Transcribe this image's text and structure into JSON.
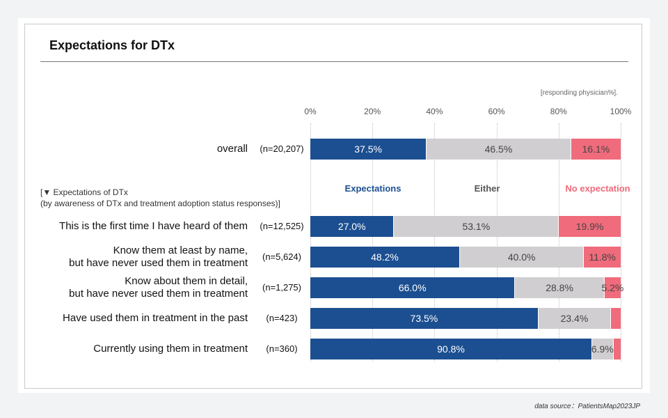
{
  "title": "Expectations for DTx",
  "unit_note": "[responding physician%].",
  "group_caption": {
    "line1": "[▼ Expectations of DTx",
    "line2": "(by awareness of DTx and treatment adoption status responses)]"
  },
  "source": "data source：PatientsMap2023JP",
  "colors": {
    "expectations": "#1c4f91",
    "either": "#d0ced0",
    "no_expectation": "#f06b7b"
  },
  "chart_data": {
    "type": "bar",
    "orientation": "horizontal-stacked",
    "title": "Expectations for DTx",
    "xlim": [
      0,
      100
    ],
    "ticks": [
      "0%",
      "20%",
      "40%",
      "60%",
      "80%",
      "100%"
    ],
    "legend_placement": "above bars",
    "series": [
      {
        "name": "Expectations",
        "key": "expectations"
      },
      {
        "name": "Either",
        "key": "either"
      },
      {
        "name": "No expectation",
        "key": "no_expectation"
      }
    ],
    "rows": [
      {
        "label": [
          "overall"
        ],
        "n": "(n=20,207)",
        "values": [
          37.5,
          46.5,
          16.1
        ],
        "labels": [
          "37.5%",
          "46.5%",
          "16.1%"
        ]
      },
      {
        "label": [
          "This is the first time I have heard of them"
        ],
        "n": "(n=12,525)",
        "values": [
          27.0,
          53.1,
          19.9
        ],
        "labels": [
          "27.0%",
          "53.1%",
          "19.9%"
        ]
      },
      {
        "label": [
          "Know them at least by name,",
          "but have never used them in treatment"
        ],
        "n": "(n=5,624)",
        "values": [
          48.2,
          40.0,
          11.8
        ],
        "labels": [
          "48.2%",
          "40.0%",
          "11.8%"
        ]
      },
      {
        "label": [
          "Know about them in detail,",
          "but have never used them in treatment"
        ],
        "n": "(n=1,275)",
        "values": [
          66.0,
          28.8,
          5.2
        ],
        "labels": [
          "66.0%",
          "28.8%",
          "5.2%"
        ]
      },
      {
        "label": [
          "Have used them in treatment in the past"
        ],
        "n": "(n=423)",
        "values": [
          73.5,
          23.4,
          3.1
        ],
        "labels": [
          "73.5%",
          "23.4%",
          ""
        ]
      },
      {
        "label": [
          "Currently using them in treatment"
        ],
        "n": "(n=360)",
        "values": [
          90.8,
          6.9,
          2.3
        ],
        "labels": [
          "90.8%",
          "6.9%",
          ""
        ]
      }
    ]
  }
}
